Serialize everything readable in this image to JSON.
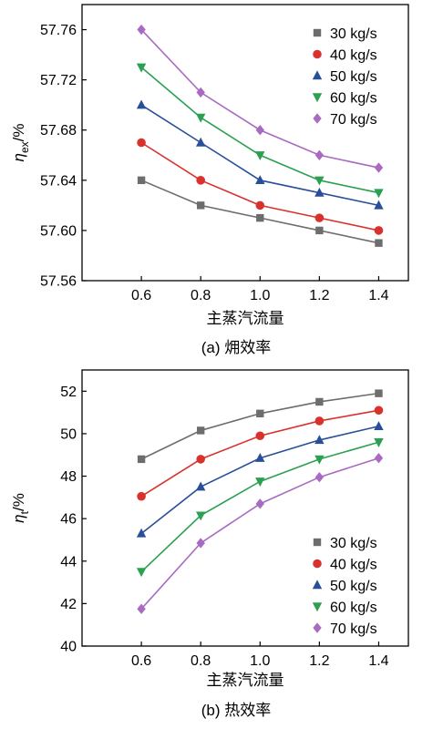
{
  "chart_data": [
    {
      "type": "line",
      "caption": "(a) 㶲效率",
      "xlabel": "主蒸汽流量",
      "ylabel_main": "η",
      "ylabel_sub": "ex",
      "ylabel_suffix": "/%",
      "x": [
        0.6,
        0.8,
        1.0,
        1.2,
        1.4
      ],
      "x_ticks": [
        "0.6",
        "0.8",
        "1.0",
        "1.2",
        "1.4"
      ],
      "xlim": [
        0.4,
        1.5
      ],
      "ylim": [
        57.56,
        57.78
      ],
      "y_ticks": [
        57.56,
        57.6,
        57.64,
        57.68,
        57.72,
        57.76
      ],
      "y_tick_labels": [
        "57.56",
        "57.60",
        "57.64",
        "57.68",
        "57.72",
        "57.76"
      ],
      "grid": false,
      "legend_position": "top-right",
      "series": [
        {
          "name": "30 kg/s",
          "values": [
            57.64,
            57.62,
            57.61,
            57.6,
            57.59
          ],
          "color": "#6d6d6d",
          "marker": "square"
        },
        {
          "name": "40 kg/s",
          "values": [
            57.67,
            57.64,
            57.62,
            57.61,
            57.6
          ],
          "color": "#d9312b",
          "marker": "circle"
        },
        {
          "name": "50 kg/s",
          "values": [
            57.7,
            57.67,
            57.64,
            57.63,
            57.62
          ],
          "color": "#2a4f9a",
          "marker": "triangle-up"
        },
        {
          "name": "60 kg/s",
          "values": [
            57.73,
            57.69,
            57.66,
            57.64,
            57.63
          ],
          "color": "#2aa050",
          "marker": "triangle-down"
        },
        {
          "name": "70 kg/s",
          "values": [
            57.76,
            57.71,
            57.68,
            57.66,
            57.65
          ],
          "color": "#a86bc1",
          "marker": "diamond"
        }
      ]
    },
    {
      "type": "line",
      "caption": "(b) 热效率",
      "xlabel": "主蒸汽流量",
      "ylabel_main": "η",
      "ylabel_sub": "t",
      "ylabel_suffix": "/%",
      "x": [
        0.6,
        0.8,
        1.0,
        1.2,
        1.4
      ],
      "x_ticks": [
        "0.6",
        "0.8",
        "1.0",
        "1.2",
        "1.4"
      ],
      "xlim": [
        0.4,
        1.5
      ],
      "ylim": [
        40,
        53
      ],
      "y_ticks": [
        40,
        42,
        44,
        46,
        48,
        50,
        52
      ],
      "y_tick_labels": [
        "40",
        "42",
        "44",
        "46",
        "48",
        "50",
        "52"
      ],
      "grid": false,
      "legend_position": "bottom-right",
      "series": [
        {
          "name": "30 kg/s",
          "values": [
            48.8,
            50.15,
            50.95,
            51.5,
            51.9
          ],
          "color": "#6d6d6d",
          "marker": "square"
        },
        {
          "name": "40 kg/s",
          "values": [
            47.05,
            48.8,
            49.9,
            50.6,
            51.1
          ],
          "color": "#d9312b",
          "marker": "circle"
        },
        {
          "name": "50 kg/s",
          "values": [
            45.3,
            47.5,
            48.85,
            49.7,
            50.35
          ],
          "color": "#2a4f9a",
          "marker": "triangle-up"
        },
        {
          "name": "60 kg/s",
          "values": [
            43.5,
            46.15,
            47.75,
            48.8,
            49.6
          ],
          "color": "#2aa050",
          "marker": "triangle-down"
        },
        {
          "name": "70 kg/s",
          "values": [
            41.75,
            44.85,
            46.7,
            47.95,
            48.85
          ],
          "color": "#a86bc1",
          "marker": "diamond"
        }
      ]
    }
  ]
}
